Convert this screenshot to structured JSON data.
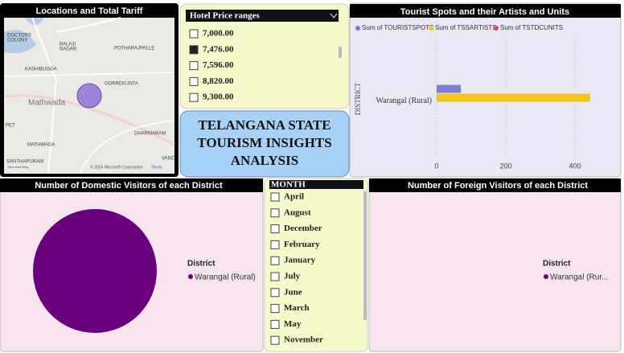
{
  "map": {
    "title": "Locations and Total Tariff",
    "labels": [
      "DOCTORS",
      "COLONY",
      "BALAJI",
      "NAGAR",
      "POTHARAJPALLE",
      "KASHIBUGGA",
      "GORREKUNTA",
      "Mathwada",
      "PET",
      "DHARMARAM",
      "MATHWADA",
      "SANTHAPURAM",
      "VANC"
    ],
    "attribution": "© 2024 Microsoft Corporation",
    "terms": "Terms",
    "brand": "Microsoft Bing"
  },
  "price_slicer": {
    "title": "Hotel Price ranges",
    "items": [
      "7,000.00",
      "7,476.00",
      "7,596.00",
      "8,820.00",
      "9,300.00"
    ],
    "selected": [
      false,
      true,
      false,
      false,
      false
    ]
  },
  "banner": {
    "lines": [
      "TELANGANA STATE",
      "TOURISM INSIGHTS",
      "ANALYSIS"
    ]
  },
  "month_slicer": {
    "title": "MONTH",
    "items": [
      "April",
      "August",
      "December",
      "February",
      "January",
      "July",
      "June",
      "March",
      "May",
      "November"
    ]
  },
  "chart_data": [
    {
      "type": "bar",
      "orientation": "horizontal",
      "title": "Tourist Spots and their Artists and Units",
      "y_label": "DISTRICT",
      "categories": [
        "Warangal (Rural)"
      ],
      "series": [
        {
          "name": "Sum of TOURISTSPOTS",
          "color": "#7b80cf",
          "values": [
            70
          ]
        },
        {
          "name": "Sum of TSSARTISTS",
          "color": "#f5c518",
          "values": [
            444
          ]
        },
        {
          "name": "Sum of TSTDCUNITS",
          "color": "#e04a4a",
          "values": [
            0
          ]
        }
      ],
      "xlim": [
        0,
        500
      ],
      "xticks": [
        0,
        200,
        400
      ],
      "grid": true
    },
    {
      "type": "pie",
      "title": "Number of Domestic Visitors of each District",
      "legend_title": "District",
      "categories": [
        "Warangal (Rural)"
      ],
      "values": [
        100
      ],
      "colors": [
        "#6b007f"
      ]
    },
    {
      "type": "pie",
      "title": "Number of Foreign Visitors of each District",
      "legend_title": "District",
      "categories": [
        "Warangal (Rur..."
      ],
      "values": [
        0
      ],
      "colors": [
        "#6b007f"
      ]
    }
  ]
}
